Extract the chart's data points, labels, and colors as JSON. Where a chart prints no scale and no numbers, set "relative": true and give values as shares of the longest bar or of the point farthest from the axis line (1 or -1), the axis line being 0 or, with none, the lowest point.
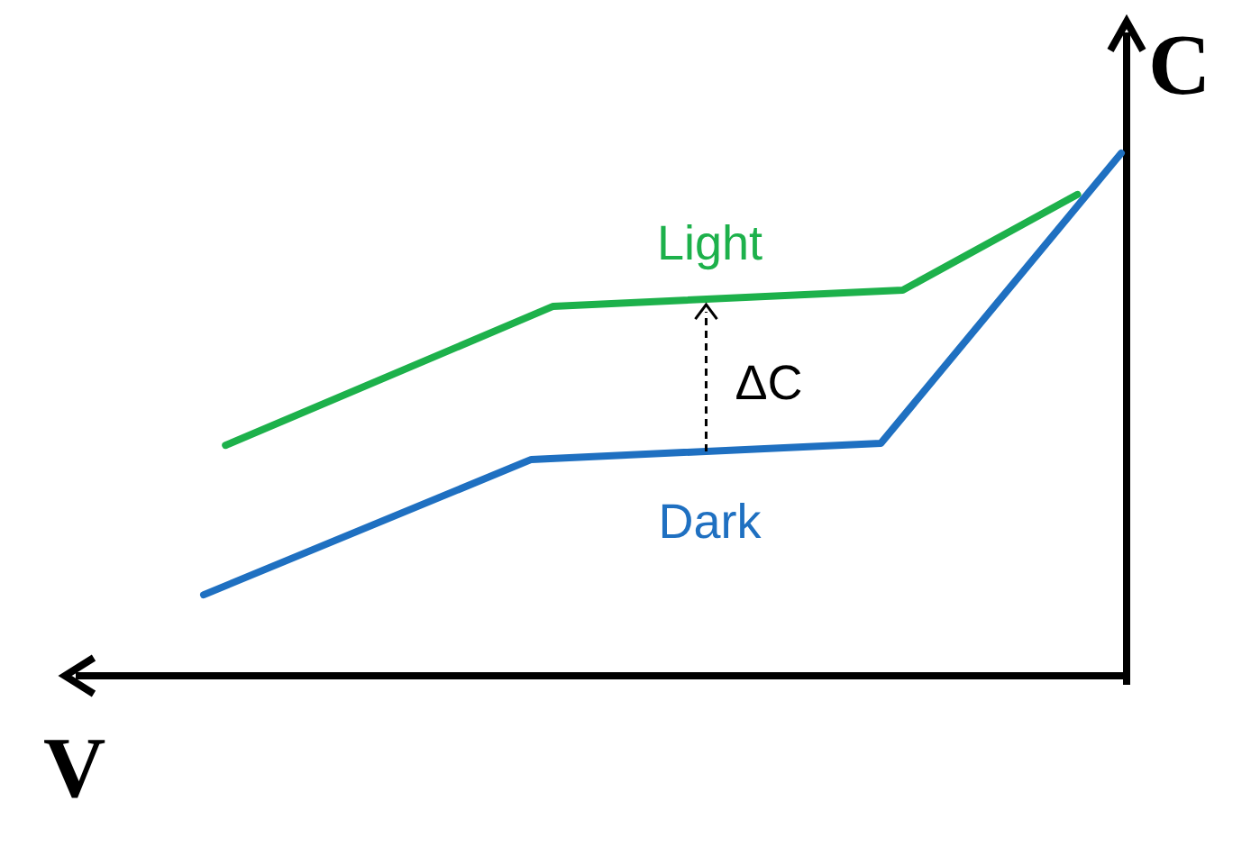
{
  "chart_data": {
    "type": "line",
    "relative": true,
    "xlabel": "V",
    "ylabel": "C",
    "categories": [
      null,
      null,
      null,
      null,
      null,
      null,
      null,
      null,
      null,
      null,
      null,
      null,
      null,
      null,
      null,
      null,
      null,
      null,
      null,
      null,
      null,
      null,
      null,
      null,
      null,
      null,
      null,
      null,
      null,
      null,
      null,
      null,
      null,
      null,
      null,
      null,
      null,
      null,
      null,
      null,
      null,
      null,
      null
    ],
    "series": [
      {
        "name": "Light",
        "color": "#1db14b",
        "values": [
          null,
          0.441,
          null,
          null,
          null,
          null,
          null,
          null,
          null,
          null,
          null,
          null,
          null,
          null,
          null,
          null,
          0.707,
          null,
          null,
          null,
          null,
          null,
          null,
          null,
          null,
          null,
          null,
          null,
          null,
          null,
          null,
          null,
          0.738,
          null,
          null,
          null,
          null,
          null,
          null,
          null,
          0.921,
          null,
          null
        ]
      },
      {
        "name": "Dark",
        "color": "#1f70c1",
        "values": [
          0.155,
          null,
          null,
          null,
          null,
          null,
          null,
          null,
          null,
          null,
          null,
          null,
          null,
          null,
          null,
          0.414,
          null,
          null,
          null,
          null,
          null,
          null,
          null,
          null,
          null,
          null,
          null,
          null,
          null,
          null,
          null,
          0.445,
          null,
          null,
          null,
          null,
          null,
          null,
          null,
          null,
          null,
          null,
          1
        ]
      }
    ],
    "annotations": [
      "ΔC"
    ]
  }
}
